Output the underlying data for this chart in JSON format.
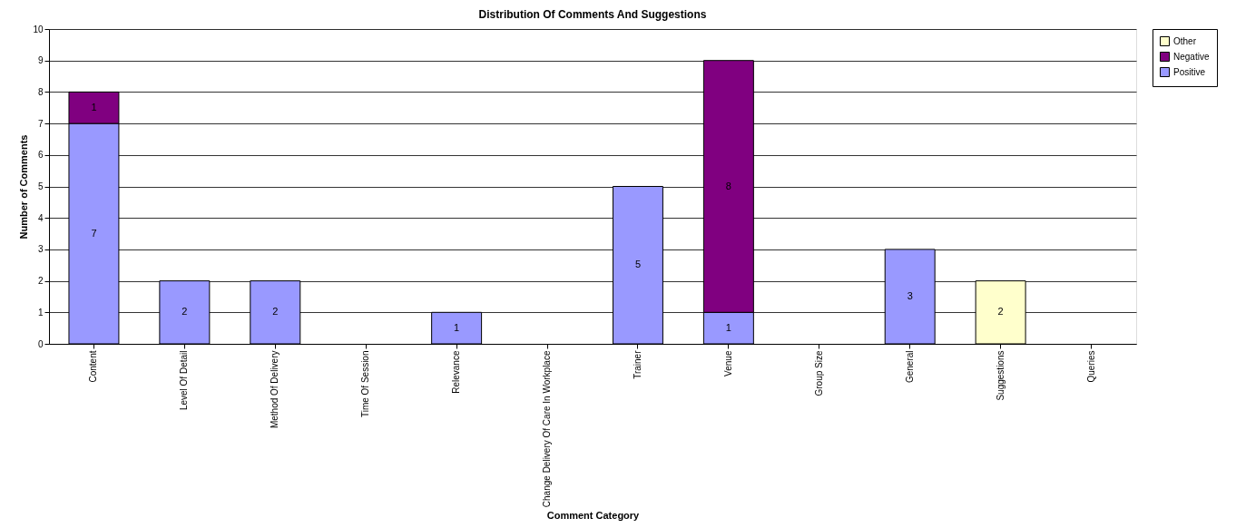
{
  "chart_data": {
    "type": "bar",
    "title": "Distribution Of Comments And Suggestions",
    "xlabel": "Comment  Category",
    "ylabel": "Number  of Comments",
    "categories": [
      "Content",
      "Level Of Detail",
      "Method Of Delivery",
      "Time Of Session",
      "Relevance",
      "Change Delivery Of Care In Workplace",
      "Trainer",
      "Venue",
      "Group Size",
      "General",
      "Suggestions",
      "Queries"
    ],
    "stacked": true,
    "series": [
      {
        "name": "Positive",
        "color": "#9999ff",
        "values": [
          7,
          2,
          2,
          0,
          1,
          0,
          5,
          1,
          0,
          3,
          0,
          0
        ],
        "value_labels": [
          "7",
          "2",
          "2",
          null,
          "1",
          null,
          "5",
          "1",
          null,
          "3",
          null,
          null
        ]
      },
      {
        "name": "Negative",
        "color": "#800080",
        "values": [
          1,
          0,
          0,
          0,
          0,
          0,
          0,
          8,
          0,
          0,
          0,
          0
        ],
        "value_labels": [
          "1",
          null,
          null,
          null,
          null,
          null,
          null,
          "8",
          null,
          null,
          null,
          null
        ]
      },
      {
        "name": "Other",
        "color": "#ffffcc",
        "values": [
          0,
          0,
          0,
          0,
          0,
          0,
          0,
          0,
          0,
          0,
          2,
          0
        ],
        "value_labels": [
          null,
          null,
          null,
          null,
          null,
          null,
          null,
          null,
          null,
          null,
          "2",
          null
        ]
      }
    ],
    "ylim": [
      0,
      10
    ],
    "yticks": [
      0,
      1,
      2,
      3,
      4,
      5,
      6,
      7,
      8,
      9,
      10
    ],
    "grid": "y",
    "legend": "right"
  }
}
